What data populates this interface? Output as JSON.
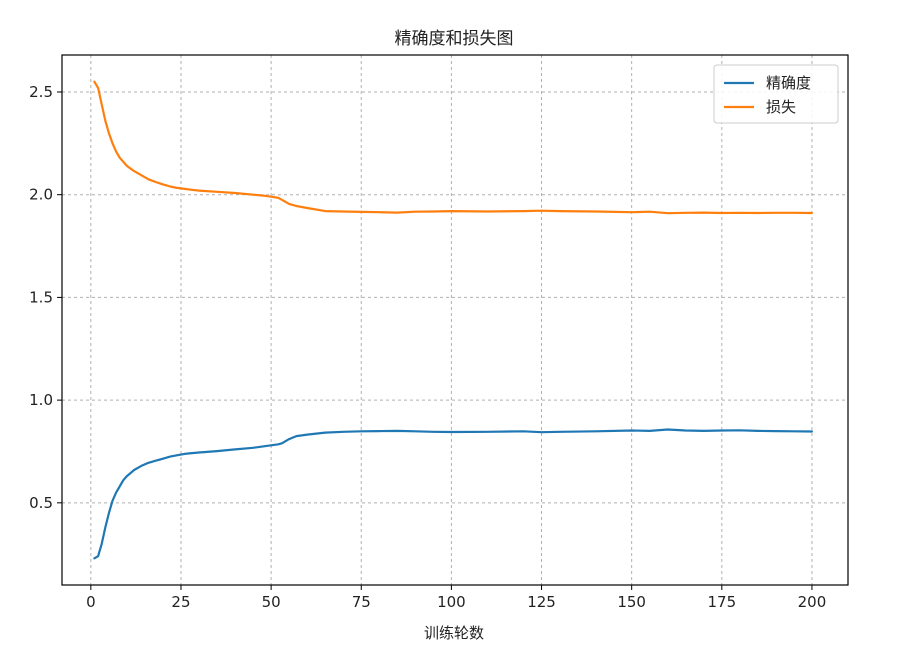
{
  "chart_data": {
    "type": "line",
    "title": "精确度和损失图",
    "xlabel": "训练轮数",
    "ylabel": "",
    "xlim": [
      -8,
      210
    ],
    "ylim": [
      0.1,
      2.68
    ],
    "xticks": [
      0,
      25,
      50,
      75,
      100,
      125,
      150,
      175,
      200
    ],
    "yticks": [
      0.5,
      1.0,
      1.5,
      2.0,
      2.5
    ],
    "ytick_labels": [
      "0.5",
      "1.0",
      "1.5",
      "2.0",
      "2.5"
    ],
    "grid": true,
    "legend_position": "top-right",
    "series": [
      {
        "name": "精确度",
        "color": "#1f77b4",
        "x": [
          1,
          2,
          3,
          4,
          5,
          6,
          7,
          8,
          9,
          10,
          12,
          14,
          16,
          18,
          20,
          22,
          24,
          26,
          28,
          30,
          35,
          40,
          45,
          48,
          50,
          52,
          53,
          55,
          57,
          60,
          65,
          70,
          75,
          80,
          85,
          90,
          95,
          100,
          110,
          120,
          125,
          130,
          140,
          150,
          155,
          160,
          165,
          170,
          175,
          180,
          185,
          190,
          195,
          200
        ],
        "y": [
          0.23,
          0.24,
          0.3,
          0.38,
          0.45,
          0.51,
          0.55,
          0.58,
          0.61,
          0.63,
          0.66,
          0.68,
          0.695,
          0.705,
          0.715,
          0.725,
          0.732,
          0.738,
          0.742,
          0.745,
          0.752,
          0.76,
          0.768,
          0.775,
          0.78,
          0.785,
          0.79,
          0.81,
          0.825,
          0.832,
          0.842,
          0.846,
          0.848,
          0.849,
          0.85,
          0.848,
          0.846,
          0.845,
          0.846,
          0.848,
          0.844,
          0.846,
          0.848,
          0.852,
          0.85,
          0.857,
          0.852,
          0.85,
          0.852,
          0.853,
          0.85,
          0.849,
          0.848,
          0.847
        ]
      },
      {
        "name": "损失",
        "color": "#ff7f0e",
        "x": [
          1,
          2,
          3,
          4,
          5,
          6,
          7,
          8,
          9,
          10,
          12,
          14,
          16,
          18,
          20,
          22,
          24,
          26,
          28,
          30,
          35,
          40,
          45,
          48,
          50,
          52,
          53,
          55,
          57,
          60,
          65,
          70,
          75,
          80,
          85,
          90,
          95,
          100,
          110,
          120,
          125,
          130,
          140,
          150,
          155,
          160,
          165,
          170,
          175,
          180,
          185,
          190,
          195,
          200
        ],
        "y": [
          2.55,
          2.52,
          2.44,
          2.36,
          2.3,
          2.25,
          2.21,
          2.18,
          2.16,
          2.14,
          2.115,
          2.095,
          2.075,
          2.062,
          2.05,
          2.04,
          2.033,
          2.028,
          2.024,
          2.02,
          2.014,
          2.008,
          2.0,
          1.995,
          1.99,
          1.985,
          1.975,
          1.955,
          1.945,
          1.935,
          1.92,
          1.918,
          1.916,
          1.915,
          1.913,
          1.917,
          1.918,
          1.92,
          1.918,
          1.92,
          1.922,
          1.92,
          1.918,
          1.915,
          1.917,
          1.91,
          1.912,
          1.913,
          1.911,
          1.912,
          1.911,
          1.912,
          1.912,
          1.911
        ]
      }
    ]
  }
}
